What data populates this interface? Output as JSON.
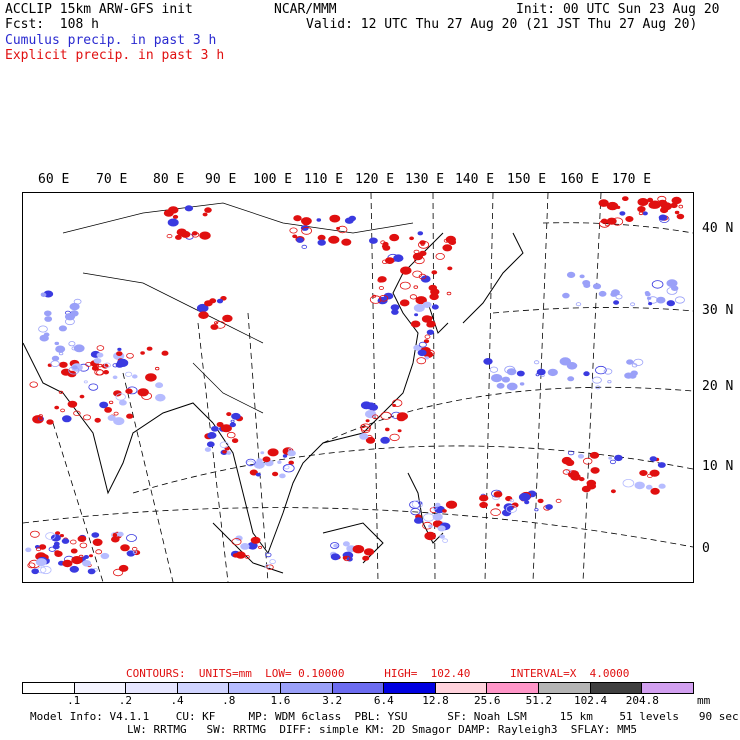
{
  "header": {
    "title_left": "ACCLIP 15km ARW-GFS init",
    "fcst": "Fcst:  108 h",
    "center": "NCAR/MMM",
    "init": "Init: 00 UTC Sun 23 Aug 20",
    "valid": "Valid: 12 UTC Thu 27 Aug 20 (21 JST Thu 27 Aug 20)",
    "cumulus": "Cumulus precip. in past 3 h",
    "explicit": "Explicit precip. in past 3 h"
  },
  "map": {
    "lon_labels": [
      "60 E",
      "70 E",
      "80 E",
      "90 E",
      "100 E",
      "110 E",
      "120 E",
      "130 E",
      "140 E",
      "150 E",
      "160 E",
      "170 E"
    ],
    "lat_labels": [
      "40 N",
      "30 N",
      "20 N",
      "10 N",
      "0"
    ],
    "colors": {
      "cumulus": "#3a3ae0",
      "explicit": "#e01010",
      "coast": "#000000",
      "grid": "#000000"
    }
  },
  "legend": {
    "contours": "CONTOURS:  UNITS=mm  LOW= 0.10000      HIGH=  102.40      INTERVAL=X  4.0000",
    "ticks": [
      ".1",
      ".2",
      ".4",
      ".8",
      "1.6",
      "3.2",
      "6.4",
      "12.8",
      "25.6",
      "51.2",
      "102.4",
      "204.8"
    ],
    "units": "mm",
    "colors": [
      "#ffffff",
      "#f4f4ff",
      "#e6e6ff",
      "#d0d4ff",
      "#b6bcff",
      "#9aa0f8",
      "#6c6cf0",
      "#0000e0",
      "#ffd2dc",
      "#ff96c8",
      "#b4b4b4",
      "#404040",
      "#d2a0f0"
    ]
  },
  "footer": {
    "line1": "Model Info: V4.1.1    CU: KF     MP: WDM 6class  PBL: YSU      SF: Noah LSM     15 km    51 levels   90 sec",
    "line2": "LW: RRTMG   SW: RRTMG  DIFF: simple KM: 2D Smagor DAMP: Rayleigh3  SFLAY: MM5"
  }
}
